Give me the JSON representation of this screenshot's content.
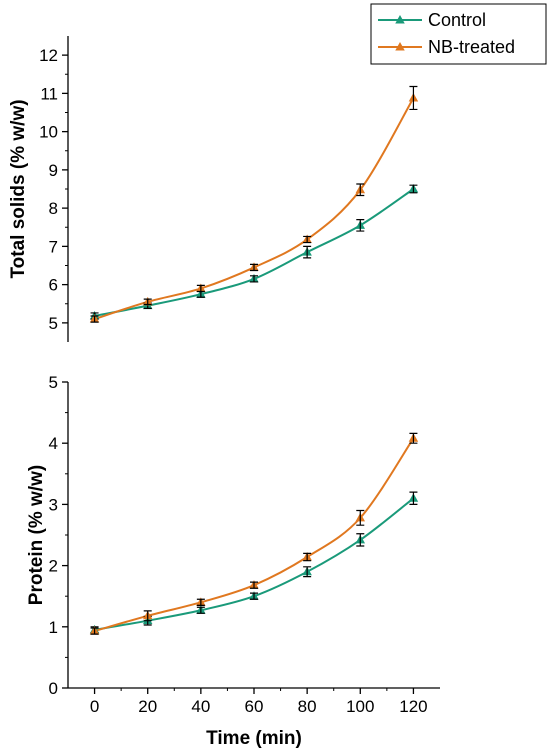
{
  "chart_data": [
    {
      "type": "line",
      "title": "",
      "xlabel": "",
      "ylabel": "Total solids (% w/w)",
      "x": [
        0,
        20,
        40,
        60,
        80,
        100,
        120
      ],
      "xlim": [
        -10,
        130
      ],
      "ylim": [
        4.5,
        12.5
      ],
      "yticks": [
        5,
        6,
        7,
        8,
        9,
        10,
        11,
        12
      ],
      "grid": false,
      "series": [
        {
          "name": "Control",
          "color": "#1a9a7a",
          "marker": "triangle",
          "values": [
            5.18,
            5.45,
            5.75,
            6.15,
            6.85,
            7.55,
            8.5
          ],
          "errors": [
            0.08,
            0.07,
            0.08,
            0.08,
            0.15,
            0.15,
            0.1
          ]
        },
        {
          "name": "NB-treated",
          "color": "#e07820",
          "marker": "triangle",
          "values": [
            5.1,
            5.55,
            5.9,
            6.45,
            7.18,
            8.48,
            10.88
          ],
          "errors": [
            0.08,
            0.07,
            0.08,
            0.08,
            0.08,
            0.15,
            0.3
          ]
        }
      ]
    },
    {
      "type": "line",
      "title": "",
      "xlabel": "Time (min)",
      "ylabel": "Protein (% w/w)",
      "x": [
        0,
        20,
        40,
        60,
        80,
        100,
        120
      ],
      "xticks": [
        0,
        20,
        40,
        60,
        80,
        100,
        120
      ],
      "xlim": [
        -10,
        130
      ],
      "ylim": [
        0,
        5
      ],
      "yticks": [
        0,
        1,
        2,
        3,
        4,
        5
      ],
      "grid": false,
      "series": [
        {
          "name": "Control",
          "color": "#1a9a7a",
          "marker": "triangle",
          "values": [
            0.95,
            1.1,
            1.27,
            1.5,
            1.9,
            2.42,
            3.1
          ],
          "errors": [
            0.05,
            0.07,
            0.05,
            0.05,
            0.08,
            0.1,
            0.1
          ]
        },
        {
          "name": "NB-treated",
          "color": "#e07820",
          "marker": "triangle",
          "values": [
            0.93,
            1.18,
            1.4,
            1.68,
            2.14,
            2.78,
            4.08
          ],
          "errors": [
            0.05,
            0.08,
            0.05,
            0.05,
            0.06,
            0.12,
            0.08
          ]
        }
      ]
    }
  ],
  "legend": {
    "placement": "top-right",
    "entries": [
      {
        "label": "Control",
        "color": "#1a9a7a"
      },
      {
        "label": "NB-treated",
        "color": "#e07820"
      }
    ]
  }
}
